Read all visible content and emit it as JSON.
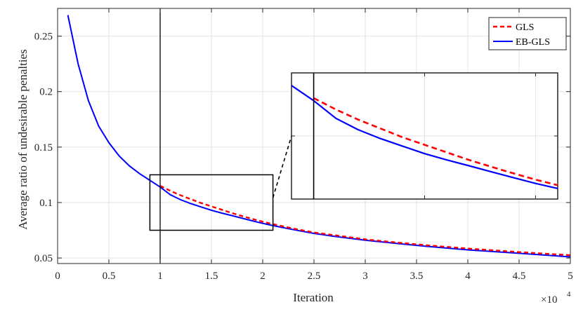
{
  "chart_data": {
    "type": "line",
    "xlabel": "Iteration",
    "ylabel": "Average ratio of undesirable penalties",
    "x_exponent_label": "×10",
    "x_exponent_power": "4",
    "xlim": [
      0,
      50000
    ],
    "ylim": [
      0.045,
      0.275
    ],
    "xticks": [
      0,
      5000,
      10000,
      15000,
      20000,
      25000,
      30000,
      35000,
      40000,
      45000,
      50000
    ],
    "xtick_labels": [
      "0",
      "0.5",
      "1",
      "1.5",
      "2",
      "2.5",
      "3",
      "3.5",
      "4",
      "4.5",
      "5"
    ],
    "yticks": [
      0.05,
      0.1,
      0.15,
      0.2,
      0.25
    ],
    "ytick_labels": [
      "0.05",
      "0.1",
      "0.15",
      "0.2",
      "0.25"
    ],
    "grid": true,
    "legend_position": "top-right",
    "vertical_marker_x": 10000,
    "series": [
      {
        "name": "GLS",
        "style": "dashed",
        "color": "#ff0000",
        "x": [
          10000,
          11000,
          12000,
          13000,
          14000,
          15000,
          16000,
          17000,
          18000,
          19000,
          20000,
          21000,
          23000,
          25000,
          27000,
          30000,
          33000,
          36000,
          40000,
          45000,
          50000
        ],
        "y": [
          0.115,
          0.1105,
          0.1065,
          0.103,
          0.0995,
          0.0965,
          0.0935,
          0.0905,
          0.0878,
          0.0852,
          0.0827,
          0.0805,
          0.0765,
          0.073,
          0.0705,
          0.0668,
          0.064,
          0.0615,
          0.0585,
          0.0553,
          0.0525
        ]
      },
      {
        "name": "EB-GLS",
        "style": "solid",
        "color": "#0000ff",
        "x": [
          1000,
          2000,
          3000,
          4000,
          5000,
          6000,
          7000,
          8000,
          9000,
          10000,
          11000,
          12000,
          13000,
          14000,
          15000,
          16000,
          17000,
          18000,
          19000,
          20000,
          21000,
          23000,
          25000,
          27000,
          30000,
          33000,
          36000,
          40000,
          45000,
          50000
        ],
        "y": [
          0.269,
          0.225,
          0.192,
          0.169,
          0.154,
          0.142,
          0.133,
          0.126,
          0.12,
          0.114,
          0.107,
          0.1025,
          0.099,
          0.096,
          0.093,
          0.0905,
          0.0882,
          0.0858,
          0.0835,
          0.0812,
          0.0792,
          0.0755,
          0.0722,
          0.0695,
          0.066,
          0.0632,
          0.0605,
          0.0573,
          0.0542,
          0.051
        ]
      }
    ],
    "inset": {
      "source_xlim": [
        9000,
        21000
      ],
      "source_ylim": [
        0.075,
        0.125
      ]
    }
  }
}
